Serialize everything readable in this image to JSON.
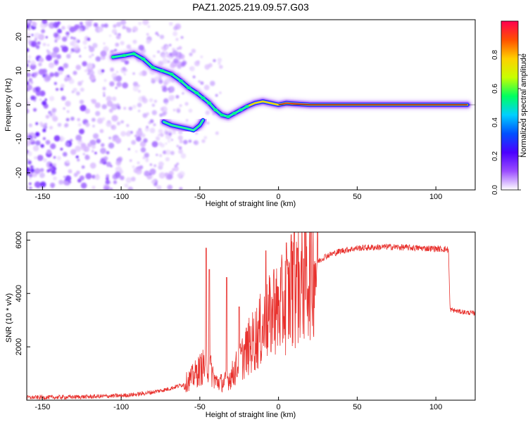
{
  "title": "PAZ1.2025.219.09.57.G03",
  "colors": {
    "snr_line": "#e8302c",
    "track_core": "#d11a1a",
    "axis": "#000000"
  },
  "colorbar": {
    "label": "Normalized spectral amplitude",
    "range": [
      0,
      1
    ],
    "ticks": [
      "0.0",
      "0.2",
      "0.4",
      "0.6",
      "0.8"
    ],
    "tick_values": [
      0.0,
      0.2,
      0.4,
      0.6,
      0.8
    ],
    "colormap": [
      "#ffffff",
      "#9b4dff",
      "#4b00ff",
      "#0050ff",
      "#00d0ff",
      "#00ff60",
      "#c8ff00",
      "#ffd000",
      "#ff5000",
      "#ff0050"
    ]
  },
  "chart_data": [
    {
      "type": "heatmap",
      "title": "PAZ1.2025.219.09.57.G03",
      "xlabel": "Height of straight line (km)",
      "ylabel": "Frequency (Hz)",
      "xlim": [
        -160,
        125
      ],
      "ylim": [
        -25,
        25
      ],
      "xticks": [
        -150,
        -100,
        -50,
        0,
        50,
        100
      ],
      "yticks": [
        -20,
        -10,
        0,
        10,
        20
      ],
      "main_track": [
        [
          -105,
          14
        ],
        [
          -98,
          14.5
        ],
        [
          -92,
          15
        ],
        [
          -86,
          13.5
        ],
        [
          -80,
          11
        ],
        [
          -74,
          10
        ],
        [
          -68,
          9
        ],
        [
          -62,
          7
        ],
        [
          -57,
          5
        ],
        [
          -52,
          3.5
        ],
        [
          -48,
          2
        ],
        [
          -44,
          0.5
        ],
        [
          -40,
          -1.5
        ],
        [
          -36,
          -3
        ],
        [
          -32,
          -3.5
        ],
        [
          -28,
          -2.5
        ],
        [
          -24,
          -1.5
        ],
        [
          -20,
          -0.5
        ],
        [
          -15,
          0.5
        ],
        [
          -10,
          1
        ],
        [
          -5,
          0.5
        ],
        [
          0,
          0
        ],
        [
          5,
          0.5
        ],
        [
          10,
          0.3
        ],
        [
          20,
          0
        ],
        [
          50,
          0
        ],
        [
          90,
          0
        ],
        [
          120,
          0
        ]
      ],
      "secondary_track": [
        [
          -73,
          -5
        ],
        [
          -68,
          -6
        ],
        [
          -63,
          -6.5
        ],
        [
          -58,
          -7
        ],
        [
          -54,
          -7.5
        ],
        [
          -50,
          -6
        ],
        [
          -48,
          -4.5
        ]
      ]
    },
    {
      "type": "line",
      "xlabel": "Height of straight line (km)",
      "ylabel": "SNR (10 * v/v)",
      "xlim": [
        -160,
        125
      ],
      "ylim": [
        0,
        6300
      ],
      "xticks": [
        -150,
        -100,
        -50,
        0,
        50,
        100
      ],
      "yticks": [
        2000,
        4000,
        6000
      ],
      "envelope": [
        [
          -160,
          100
        ],
        [
          -140,
          110
        ],
        [
          -120,
          130
        ],
        [
          -100,
          170
        ],
        [
          -90,
          220
        ],
        [
          -80,
          300
        ],
        [
          -70,
          420
        ],
        [
          -60,
          600
        ],
        [
          -55,
          850
        ],
        [
          -50,
          1150
        ],
        [
          -45,
          1400
        ],
        [
          -42,
          1000
        ],
        [
          -40,
          700
        ],
        [
          -35,
          650
        ],
        [
          -30,
          900
        ],
        [
          -25,
          1400
        ],
        [
          -20,
          1900
        ],
        [
          -15,
          2300
        ],
        [
          -10,
          2700
        ],
        [
          -5,
          3100
        ],
        [
          0,
          3400
        ],
        [
          5,
          3700
        ],
        [
          10,
          4100
        ],
        [
          15,
          4500
        ],
        [
          20,
          4900
        ],
        [
          25,
          5200
        ],
        [
          30,
          5400
        ],
        [
          40,
          5600
        ],
        [
          50,
          5700
        ],
        [
          70,
          5750
        ],
        [
          90,
          5700
        ],
        [
          100,
          5680
        ],
        [
          108,
          5650
        ],
        [
          109,
          3400
        ],
        [
          115,
          3320
        ],
        [
          125,
          3250
        ]
      ],
      "spikes": [
        [
          -46,
          5700
        ],
        [
          -44,
          4900
        ],
        [
          -33,
          4600
        ],
        [
          -25,
          3500
        ],
        [
          -8,
          5600
        ],
        [
          -3,
          4900
        ],
        [
          5,
          5900
        ],
        [
          8,
          6200
        ],
        [
          10,
          6400
        ],
        [
          12,
          5700
        ],
        [
          16,
          5300
        ]
      ]
    }
  ]
}
